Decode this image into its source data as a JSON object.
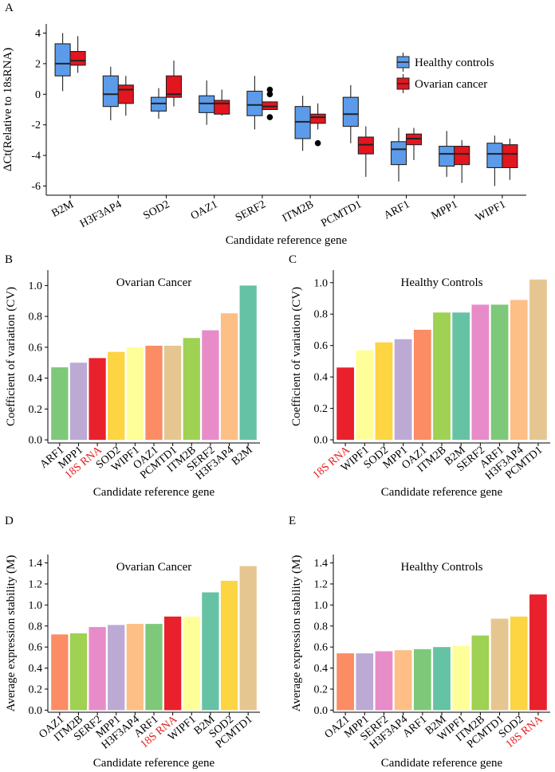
{
  "colors": {
    "healthy_box": "#5b9bea",
    "cancer_box": "#e3151f",
    "red_label": "#e31a1c",
    "palette": {
      "18S RNA": "#e9212c",
      "ARF1": "#7ec87a",
      "MPP1": "#bcaad5",
      "SOD2": "#fdd441",
      "WIPF1": "#ffff99",
      "OAZ1": "#fb8c64",
      "PCMTD1": "#e6c690",
      "ITM2B": "#9fd152",
      "SERF2": "#e88bc9",
      "H3F3AP4": "#fdbf85",
      "B2M": "#66c2a5"
    }
  },
  "chart_data": [
    {
      "panel": "A",
      "type": "boxplot",
      "title": "",
      "xlabel": "Candidate reference gene",
      "ylabel": "ΔCt(Relative to 18sRNA)",
      "ylim": [
        -6.6,
        4.6
      ],
      "yticks": [
        -6,
        -4,
        -2,
        0,
        2,
        4
      ],
      "categories": [
        "B2M",
        "H3F3AP4",
        "SOD2",
        "OAZ1",
        "SERF2",
        "ITM2B",
        "PCMTD1",
        "ARF1",
        "MPP1",
        "WIPF1"
      ],
      "legend": {
        "position": "right",
        "entries": [
          "Healthy controls",
          "Ovarian cancer"
        ]
      },
      "series": [
        {
          "name": "Healthy controls",
          "boxes": [
            {
              "min": 0.2,
              "q1": 1.2,
              "median": 2.0,
              "q3": 3.3,
              "max": 4.0,
              "outliers": []
            },
            {
              "min": -1.7,
              "q1": -0.8,
              "median": 0.0,
              "q3": 1.2,
              "max": 1.8,
              "outliers": []
            },
            {
              "min": -1.6,
              "q1": -1.1,
              "median": -0.6,
              "q3": -0.2,
              "max": 0.4,
              "outliers": []
            },
            {
              "min": -2.0,
              "q1": -1.2,
              "median": -0.6,
              "q3": -0.1,
              "max": 0.9,
              "outliers": []
            },
            {
              "min": -2.3,
              "q1": -1.4,
              "median": -0.7,
              "q3": 0.2,
              "max": 1.2,
              "outliers": []
            },
            {
              "min": -3.7,
              "q1": -2.9,
              "median": -1.8,
              "q3": -0.8,
              "max": -0.1,
              "outliers": []
            },
            {
              "min": -3.2,
              "q1": -2.1,
              "median": -1.3,
              "q3": -0.2,
              "max": 0.6,
              "outliers": []
            },
            {
              "min": -5.7,
              "q1": -4.6,
              "median": -3.6,
              "q3": -3.1,
              "max": -2.2,
              "outliers": []
            },
            {
              "min": -5.4,
              "q1": -4.7,
              "median": -3.9,
              "q3": -3.4,
              "max": -2.4,
              "outliers": []
            },
            {
              "min": -6.0,
              "q1": -4.8,
              "median": -3.9,
              "q3": -3.2,
              "max": -2.7,
              "outliers": []
            }
          ]
        },
        {
          "name": "Ovarian cancer",
          "boxes": [
            {
              "min": 1.4,
              "q1": 1.9,
              "median": 2.2,
              "q3": 2.8,
              "max": 3.8,
              "outliers": []
            },
            {
              "min": -1.4,
              "q1": -0.6,
              "median": 0.3,
              "q3": 0.6,
              "max": 1.2,
              "outliers": []
            },
            {
              "min": -0.8,
              "q1": -0.2,
              "median": 0.0,
              "q3": 1.2,
              "max": 2.2,
              "outliers": []
            },
            {
              "min": -1.4,
              "q1": -1.3,
              "median": -0.6,
              "q3": -0.4,
              "max": 0.3,
              "outliers": []
            },
            {
              "min": -1.0,
              "q1": -1.0,
              "median": -0.8,
              "q3": -0.5,
              "max": -0.5,
              "outliers": [
                0.3,
                0.0,
                -1.5
              ]
            },
            {
              "min": -2.3,
              "q1": -1.9,
              "median": -1.5,
              "q3": -1.3,
              "max": -0.6,
              "outliers": [
                -3.2
              ]
            },
            {
              "min": -5.4,
              "q1": -3.9,
              "median": -3.3,
              "q3": -2.8,
              "max": -2.1,
              "outliers": []
            },
            {
              "min": -4.3,
              "q1": -3.3,
              "median": -2.9,
              "q3": -2.6,
              "max": -2.2,
              "outliers": []
            },
            {
              "min": -5.8,
              "q1": -4.6,
              "median": -3.9,
              "q3": -3.4,
              "max": -3.0,
              "outliers": []
            },
            {
              "min": -5.6,
              "q1": -4.8,
              "median": -3.9,
              "q3": -3.3,
              "max": -2.9,
              "outliers": []
            }
          ]
        }
      ]
    },
    {
      "panel": "B",
      "type": "bar",
      "title": "Ovarian Cancer",
      "xlabel": "Candidate reference gene",
      "ylabel": "Coefficient of variation (CV)",
      "ylim": [
        -0.02,
        1.1
      ],
      "yticks": [
        "0.0",
        "0.2",
        "0.4",
        "0.6",
        "0.8",
        "1.0"
      ],
      "categories": [
        "ARF1",
        "MPP1",
        "18S RNA",
        "SOD2",
        "WIPF1",
        "OAZ1",
        "PCMTD1",
        "ITM2B",
        "SERF2",
        "H3F3AP4",
        "B2M"
      ],
      "values": [
        0.47,
        0.5,
        0.53,
        0.57,
        0.6,
        0.61,
        0.61,
        0.66,
        0.71,
        0.82,
        1.0
      ],
      "highlight": "18S RNA"
    },
    {
      "panel": "C",
      "type": "bar",
      "title": "Healthy Controls",
      "xlabel": "Candidate reference gene",
      "ylabel": "Coefficient of variation (CV)",
      "ylim": [
        -0.02,
        1.08
      ],
      "yticks": [
        "0.0",
        "0.2",
        "0.4",
        "0.6",
        "0.8",
        "1.0"
      ],
      "categories": [
        "18S RNA",
        "WIPF1",
        "SOD2",
        "MPP1",
        "OAZ1",
        "ITM2B",
        "B2M",
        "SERF2",
        "ARF1",
        "H3F3AP4",
        "PCMTD1"
      ],
      "values": [
        0.46,
        0.57,
        0.62,
        0.64,
        0.7,
        0.81,
        0.81,
        0.86,
        0.86,
        0.89,
        1.02
      ],
      "highlight": "18S RNA"
    },
    {
      "panel": "D",
      "type": "bar",
      "title": "Ovarian Cancer",
      "xlabel": "Candidate reference gene",
      "ylabel": "Average expression stability (M)",
      "ylim": [
        -0.02,
        1.48
      ],
      "yticks": [
        "0.0",
        "0.2",
        "0.4",
        "0.6",
        "0.8",
        "1.0",
        "1.2",
        "1.4"
      ],
      "categories": [
        "OAZ1",
        "ITM2B",
        "SERF2",
        "MPP1",
        "H3F3AP4",
        "ARF1",
        "18S RNA",
        "WIPF1",
        "B2M",
        "SOD2",
        "PCMTD1"
      ],
      "values": [
        0.72,
        0.73,
        0.79,
        0.81,
        0.82,
        0.82,
        0.89,
        0.89,
        1.12,
        1.23,
        1.37
      ],
      "highlight": "18S RNA"
    },
    {
      "panel": "E",
      "type": "bar",
      "title": "Healthy Controls",
      "xlabel": "Candidate reference gene",
      "ylabel": "Average expression stability (M)",
      "ylim": [
        -0.02,
        1.48
      ],
      "yticks": [
        "0.0",
        "0.2",
        "0.4",
        "0.6",
        "0.8",
        "1.0",
        "1.2",
        "1.4"
      ],
      "categories": [
        "OAZ1",
        "MPP1",
        "SERF2",
        "H3F3AP4",
        "ARF1",
        "B2M",
        "WIPF1",
        "ITM2B",
        "PCMTD1",
        "SOD2",
        "18S RNA"
      ],
      "values": [
        0.54,
        0.54,
        0.56,
        0.57,
        0.58,
        0.6,
        0.61,
        0.71,
        0.87,
        0.89,
        1.1
      ],
      "highlight": "18S RNA"
    }
  ]
}
